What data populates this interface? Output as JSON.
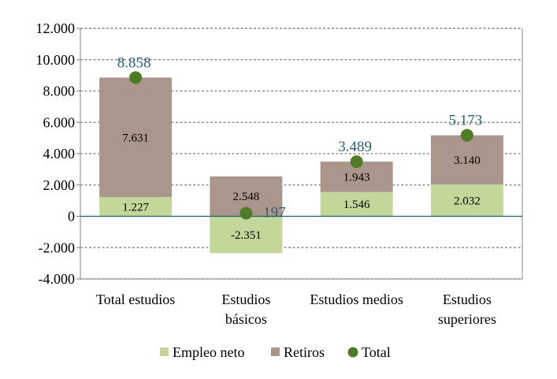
{
  "chart_data": {
    "type": "bar",
    "stacked": true,
    "categories": [
      [
        "Total estudios"
      ],
      [
        "Estudios",
        "básicos"
      ],
      [
        "Estudios medios"
      ],
      [
        "Estudios",
        "superiores"
      ]
    ],
    "series": [
      {
        "name": "Empleo neto",
        "kind": "bar",
        "color": "#c4d79b",
        "values": [
          1227,
          -2351,
          1546,
          2032
        ],
        "labels": [
          "1.227",
          "-2.351",
          "1.546",
          "2.032"
        ]
      },
      {
        "name": "Retiros",
        "kind": "bar",
        "color": "#aa968a",
        "values": [
          7631,
          2548,
          1943,
          3140
        ],
        "labels": [
          "7.631",
          "2.548",
          "1.943",
          "3.140"
        ]
      },
      {
        "name": "Total",
        "kind": "point",
        "color": "#4f7a28",
        "values": [
          8858,
          197,
          3489,
          5173
        ],
        "labels": [
          "8.858",
          "197",
          "3.489",
          "5.173"
        ]
      }
    ],
    "xlabel": "",
    "ylabel": "",
    "ylim": [
      -4000,
      12000
    ],
    "yticks": [
      -4000,
      -2000,
      0,
      2000,
      4000,
      6000,
      8000,
      10000,
      12000
    ],
    "ytick_labels": [
      "-4.000",
      "-2.000",
      "0",
      "2.000",
      "4.000",
      "6.000",
      "8.000",
      "10.000",
      "12.000"
    ],
    "grid": "horizontal-dashed",
    "legend": "bottom",
    "colors": {
      "axis": "#808080",
      "grid": "#7f7f7f",
      "zero_line": "#1f5b6e",
      "total_label": "#2e5f78",
      "text": "#000000"
    }
  }
}
